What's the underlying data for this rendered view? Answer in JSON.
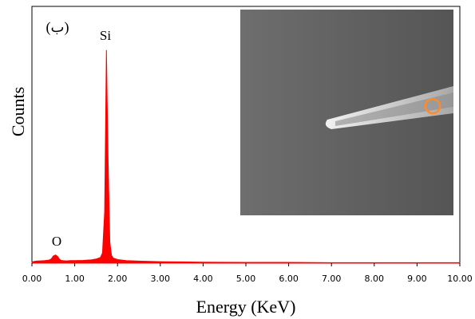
{
  "chart_data": {
    "type": "area",
    "x_label": "Energy (KeV)",
    "y_label": "Counts",
    "annotations": [
      "(ب)",
      "Si",
      "O"
    ],
    "color": "#ff0000",
    "x": [
      0,
      0.1,
      0.2,
      0.3,
      0.4,
      0.45,
      0.5,
      0.55,
      0.6,
      0.65,
      0.7,
      0.8,
      0.9,
      1.0,
      1.2,
      1.4,
      1.5,
      1.6,
      1.65,
      1.7,
      1.74,
      1.78,
      1.82,
      1.86,
      1.9,
      2.0,
      2.2,
      2.5,
      3,
      3.5,
      4,
      5,
      6,
      7,
      8,
      9,
      10
    ],
    "values": [
      0.5,
      0.8,
      0.9,
      1,
      1.2,
      1.6,
      2.8,
      3.2,
      2.6,
      1.4,
      1,
      0.9,
      1,
      1,
      1.1,
      1.3,
      1.6,
      2.2,
      4,
      20,
      83,
      40,
      8,
      3,
      2,
      1.4,
      1,
      0.8,
      0.6,
      0.5,
      0.4,
      0.3,
      0.3,
      0.2,
      0.2,
      0.2,
      0.2
    ],
    "xlim": [
      0,
      10
    ],
    "ylim": [
      0,
      100
    ],
    "xticks": [
      {
        "value": 0,
        "label": "0.00"
      },
      {
        "value": 1,
        "label": "1.00"
      },
      {
        "value": 2,
        "label": "2.00"
      },
      {
        "value": 3,
        "label": "3.00"
      },
      {
        "value": 4,
        "label": "4.00"
      },
      {
        "value": 5,
        "label": "5.00"
      },
      {
        "value": 6,
        "label": "6.00"
      },
      {
        "value": 7,
        "label": "7.00"
      },
      {
        "value": 8,
        "label": "8.00"
      },
      {
        "value": 9,
        "label": "9.00"
      },
      {
        "value": 10,
        "label": "10.00"
      }
    ]
  }
}
